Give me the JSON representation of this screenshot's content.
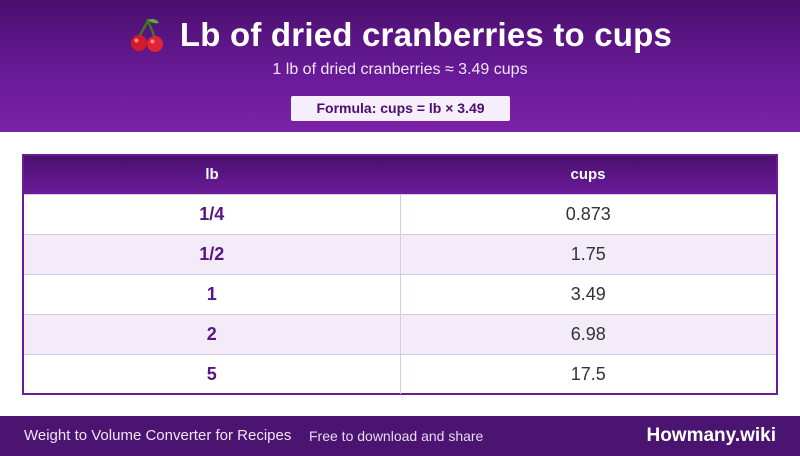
{
  "header": {
    "icon": "cherry-icon",
    "title": "Lb of dried cranberries to cups",
    "subtitle": "1 lb of dried cranberries ≈ 3.49 cups",
    "formula": "Formula: cups = lb × 3.49"
  },
  "table": {
    "columns": [
      "lb",
      "cups"
    ],
    "rows": [
      {
        "lb": "1/4",
        "cups": "0.873"
      },
      {
        "lb": "1/2",
        "cups": "1.75"
      },
      {
        "lb": "1",
        "cups": "3.49"
      },
      {
        "lb": "2",
        "cups": "6.98"
      },
      {
        "lb": "5",
        "cups": "17.5"
      }
    ]
  },
  "footer": {
    "app_name": "Weight to Volume Converter for Recipes",
    "tagline": "Free to download and share",
    "brand": "Howmany.wiki"
  },
  "colors": {
    "primary": "#6a1b9a",
    "primary_dark": "#4b0f6e",
    "row_alt": "#f3ecf8"
  }
}
